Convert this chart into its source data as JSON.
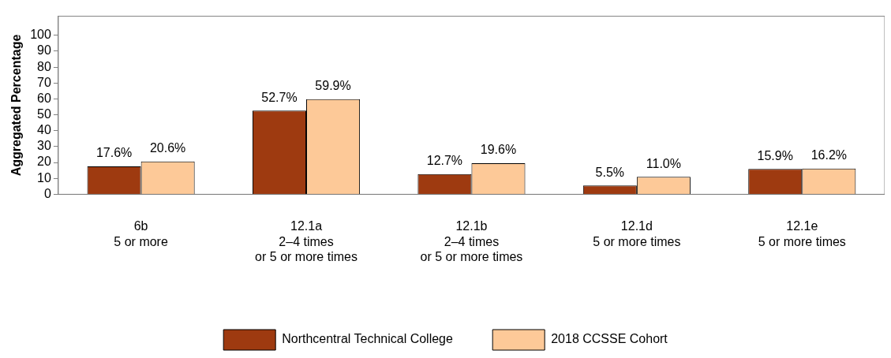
{
  "chart_data": {
    "type": "bar",
    "ylabel": "Aggregated Percentage",
    "categories": [
      "6b\n5 or more",
      "12.1a\n2–4 times\nor 5 or more times",
      "12.1b\n2–4 times\nor 5 or more times",
      "12.1d\n5 or more times",
      "12.1e\n5 or more times"
    ],
    "series": [
      {
        "name": "Northcentral Technical College",
        "color": "#9e3a10",
        "values": [
          17.6,
          52.7,
          12.7,
          5.5,
          15.9
        ],
        "value_labels": [
          "17.6%",
          "52.7%",
          "12.7%",
          "5.5%",
          "15.9%"
        ]
      },
      {
        "name": "2018 CCSSE Cohort",
        "color": "#fdc998",
        "values": [
          20.6,
          59.9,
          19.6,
          11.0,
          16.2
        ],
        "value_labels": [
          "20.6%",
          "59.9%",
          "19.6%",
          "11.0%",
          "16.2%"
        ]
      }
    ],
    "ylim": [
      0,
      112
    ],
    "yticks": [
      0,
      10,
      20,
      30,
      40,
      50,
      60,
      70,
      80,
      90,
      100
    ],
    "grid": false,
    "legend": "bottom"
  }
}
